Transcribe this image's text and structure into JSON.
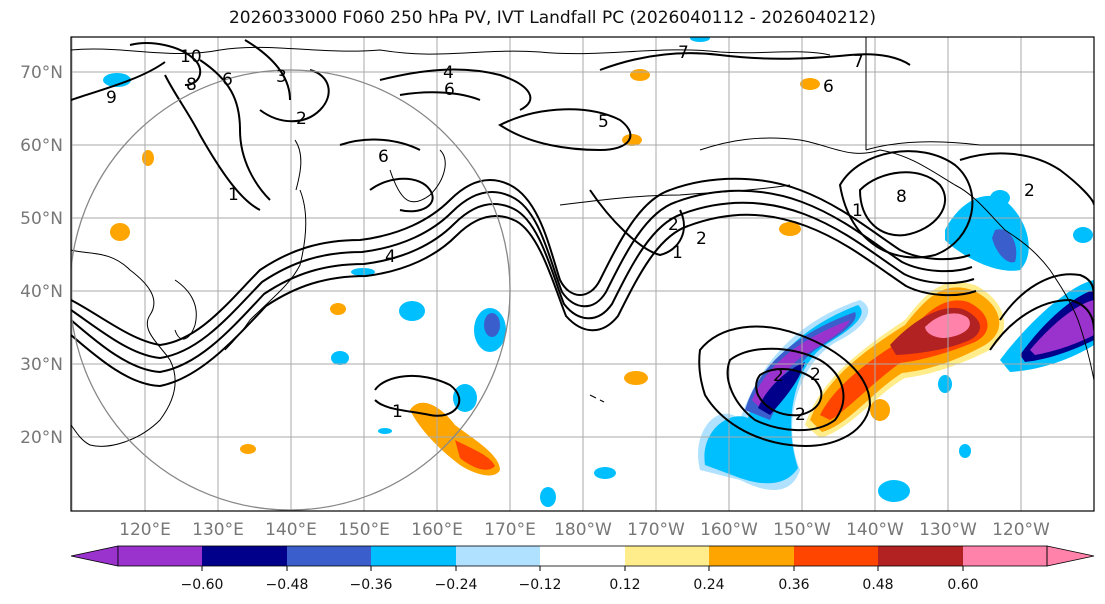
{
  "title": "2026033000 F060 250 hPa PV, IVT Landfall PC (2026040112 - 2026040212)",
  "lat_labels": [
    "70°N",
    "60°N",
    "50°N",
    "40°N",
    "30°N",
    "20°N"
  ],
  "lon_labels": [
    "120°E",
    "130°E",
    "140°E",
    "150°E",
    "160°E",
    "170°E",
    "180°W",
    "170°W",
    "160°W",
    "150°W",
    "140°W",
    "130°W",
    "120°W"
  ],
  "colorbar": {
    "ticks": [
      "−0.60",
      "−0.48",
      "−0.36",
      "−0.24",
      "−0.12",
      "0.12",
      "0.24",
      "0.36",
      "0.48",
      "0.60"
    ],
    "colors": [
      "#9a32cd",
      "#00008b",
      "#3a5fcd",
      "#00bfff",
      "#b0e2ff",
      "#ffffff",
      "#ffec8b",
      "#ffa500",
      "#ff4500",
      "#b22222",
      "#ff82ab",
      "#ff82ab"
    ]
  },
  "contour_labels": [
    "10",
    "9",
    "8",
    "6",
    "3",
    "2",
    "7",
    "4",
    "6",
    "5",
    "7",
    "6",
    "1",
    "4",
    "6",
    "1",
    "2",
    "1",
    "2",
    "8",
    "2",
    "1",
    "2",
    "2",
    "2"
  ],
  "fill_colors": {
    "purple": "#9a32cd",
    "navy": "#00008b",
    "blue": "#3a5fcd",
    "sky": "#00bfff",
    "lightblue": "#b0e2ff",
    "yellow": "#ffec8b",
    "orange": "#ffa500",
    "red": "#ff4500",
    "darkred": "#b22222",
    "pink": "#ff82ab"
  }
}
